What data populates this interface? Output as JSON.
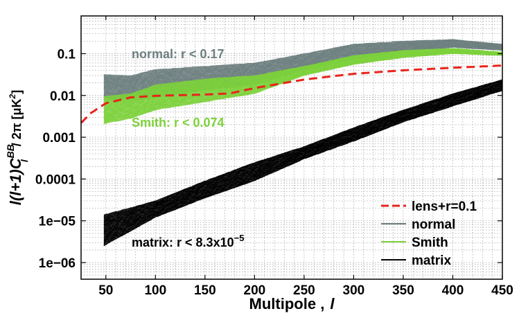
{
  "chart_data": {
    "type": "line",
    "yscale": "log",
    "xlim": [
      25,
      450
    ],
    "ylim": [
      4e-07,
      0.8
    ],
    "xticks": [
      50,
      100,
      150,
      200,
      250,
      300,
      350,
      400,
      450
    ],
    "xtick_labels": [
      "50",
      "100",
      "150",
      "200",
      "250",
      "300",
      "350",
      "400",
      "450"
    ],
    "yticks": [
      1e-06,
      1e-05,
      0.0001,
      0.001,
      0.01,
      0.1
    ],
    "ytick_labels": [
      "1e−06",
      "1e−05",
      "0.0001",
      "0.001",
      "0.01",
      "0.1"
    ],
    "xlabel": "Multipole ,",
    "xlabel_symbol": "l",
    "ylabel": "l(l+1)C",
    "ylabel_sup": "BB",
    "ylabel_sub": "l",
    "ylabel_tail": " / 2π [μK",
    "ylabel_tail_sup": "2",
    "ylabel_end": "]",
    "grid": true,
    "series": [
      {
        "name": "normal",
        "style": "band",
        "color": "#6e7f80",
        "x": [
          48,
          75,
          100,
          150,
          200,
          250,
          300,
          350,
          400,
          450
        ],
        "lower": [
          0.0085,
          0.0075,
          0.0088,
          0.0135,
          0.018,
          0.04,
          0.075,
          0.11,
          0.14,
          0.12
        ],
        "upper": [
          0.032,
          0.03,
          0.042,
          0.05,
          0.06,
          0.1,
          0.17,
          0.2,
          0.22,
          0.17
        ]
      },
      {
        "name": "Smith",
        "style": "band",
        "color": "#7dd13c",
        "x": [
          48,
          75,
          100,
          150,
          200,
          250,
          300,
          350,
          400,
          450
        ],
        "lower": [
          0.0021,
          0.0028,
          0.0045,
          0.007,
          0.011,
          0.03,
          0.055,
          0.08,
          0.1,
          0.09
        ],
        "upper": [
          0.0095,
          0.011,
          0.018,
          0.025,
          0.03,
          0.05,
          0.09,
          0.12,
          0.135,
          0.11
        ]
      },
      {
        "name": "matrix",
        "style": "band",
        "color": "#000000",
        "x": [
          48,
          100,
          150,
          200,
          250,
          300,
          350,
          400,
          450
        ],
        "lower": [
          2.5e-06,
          1.2e-05,
          3.5e-05,
          9e-05,
          0.0003,
          0.0008,
          0.0023,
          0.0055,
          0.013
        ],
        "upper": [
          1.4e-05,
          3e-05,
          9e-05,
          0.00025,
          0.0006,
          0.0017,
          0.0045,
          0.011,
          0.024
        ]
      },
      {
        "name": "lens+r=0.1",
        "style": "dashed",
        "color": "#e8241c",
        "x": [
          25,
          35,
          50,
          75,
          100,
          150,
          175,
          200,
          250,
          300,
          350,
          400,
          450
        ],
        "values": [
          0.0022,
          0.0038,
          0.0065,
          0.009,
          0.0098,
          0.0105,
          0.0112,
          0.015,
          0.024,
          0.033,
          0.04,
          0.046,
          0.052
        ]
      }
    ],
    "legend": {
      "position": "bottom-right",
      "entries": [
        {
          "label": "lens+r=0.1",
          "color": "#e8241c",
          "style": "dashed"
        },
        {
          "label": "normal",
          "color": "#6e7f80",
          "style": "solid"
        },
        {
          "label": "Smith",
          "color": "#7dd13c",
          "style": "solid"
        },
        {
          "label": "matrix",
          "color": "#000000",
          "style": "solid"
        }
      ]
    },
    "annotations": [
      {
        "text": "normal: r < 0.17",
        "color": "#6e7f80"
      },
      {
        "text": "Smith: r < 0.074",
        "color": "#7dd13c"
      },
      {
        "text": "matrix: r < 8.3x10",
        "sup": "−5",
        "color": "#000000"
      }
    ]
  }
}
